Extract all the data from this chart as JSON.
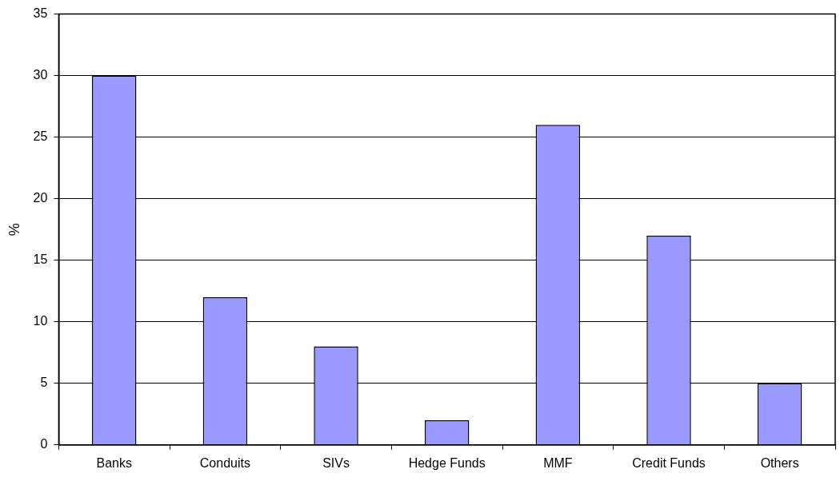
{
  "chart_data": {
    "type": "bar",
    "ylabel": "%",
    "categories": [
      "Banks",
      "Conduits",
      "SIVs",
      "Hedge Funds",
      "MMF",
      "Credit Funds",
      "Others"
    ],
    "values": [
      30,
      12,
      8,
      2,
      26,
      17,
      5
    ],
    "color": "#9999ff",
    "ylim": [
      0,
      35
    ],
    "yticks": [
      0,
      5,
      10,
      15,
      20,
      25,
      30,
      35
    ],
    "grid": "y",
    "legend": false
  }
}
